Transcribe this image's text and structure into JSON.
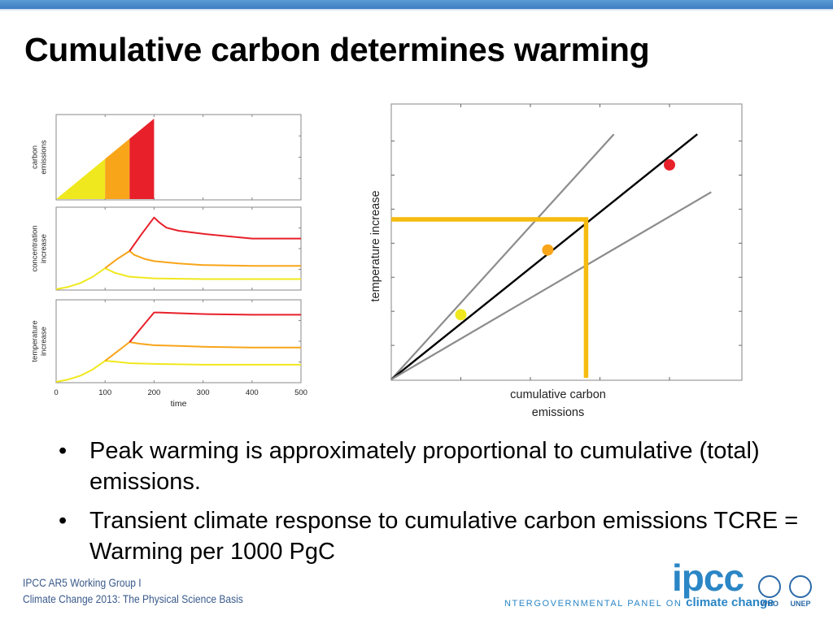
{
  "title": "Cumulative carbon determines warming",
  "bullets": [
    "Peak warming is approximately proportional to cumulative (total) emissions.",
    "Transient climate response to cumulative carbon emissions TCRE = Warming per 1000 PgC"
  ],
  "bullet_marker": "•",
  "footer": {
    "line1": "IPCC AR5 Working Group I",
    "line2": "Climate Change 2013:  The Physical Science Basis"
  },
  "logos": {
    "ipcc": "ipcc",
    "tagline_prefix": "NTERGOVERNMENTAL PANEL ON",
    "tagline_emph": "climate change",
    "who": "WHO",
    "unep": "UNEP",
    "ipcc_color": "#2b86c5"
  },
  "colors": {
    "yellow": "#f0e81e",
    "orange": "#f8a519",
    "red": "#e8202a",
    "gold_line": "#f6bb0f"
  },
  "chart_data": [
    {
      "type": "area",
      "panel": "top",
      "ylabel_lines": [
        "carbon",
        "emissions"
      ],
      "xlim": [
        0,
        500
      ],
      "ylim": [
        0,
        1
      ],
      "phases": [
        {
          "color": "yellow",
          "x0": 0,
          "x1": 100
        },
        {
          "color": "orange",
          "x0": 100,
          "x1": 150
        },
        {
          "color": "red",
          "x0": 150,
          "x1": 200
        }
      ],
      "ramp": {
        "x": [
          0,
          200
        ],
        "y": [
          0,
          1
        ]
      }
    },
    {
      "type": "line",
      "panel": "middle",
      "ylabel_lines": [
        "concentration",
        "increase"
      ],
      "xlim": [
        0,
        500
      ],
      "ylim": [
        0,
        1
      ],
      "series": [
        {
          "color": "yellow",
          "x": [
            0,
            25,
            50,
            75,
            100,
            120,
            150,
            200,
            300,
            400,
            500
          ],
          "y": [
            0,
            0.03,
            0.08,
            0.16,
            0.27,
            0.21,
            0.16,
            0.14,
            0.13,
            0.13,
            0.13
          ]
        },
        {
          "color": "orange",
          "x": [
            100,
            125,
            150,
            160,
            180,
            200,
            250,
            300,
            400,
            500
          ],
          "y": [
            0.27,
            0.39,
            0.49,
            0.44,
            0.39,
            0.36,
            0.33,
            0.31,
            0.3,
            0.3
          ]
        },
        {
          "color": "red",
          "x": [
            150,
            175,
            200,
            210,
            225,
            250,
            300,
            350,
            400,
            500
          ],
          "y": [
            0.49,
            0.71,
            0.92,
            0.86,
            0.79,
            0.75,
            0.71,
            0.68,
            0.65,
            0.65
          ]
        }
      ]
    },
    {
      "type": "line",
      "panel": "bottom",
      "ylabel_lines": [
        "temperature",
        "increase"
      ],
      "xlabel": "time",
      "xticks": [
        0,
        100,
        200,
        300,
        400,
        500
      ],
      "xlim": [
        0,
        500
      ],
      "ylim": [
        0,
        1
      ],
      "series": [
        {
          "color": "yellow",
          "x": [
            0,
            25,
            50,
            75,
            100,
            120,
            150,
            200,
            300,
            400,
            500
          ],
          "y": [
            0,
            0.03,
            0.08,
            0.16,
            0.27,
            0.26,
            0.24,
            0.23,
            0.22,
            0.22,
            0.22
          ]
        },
        {
          "color": "orange",
          "x": [
            100,
            125,
            150,
            170,
            200,
            250,
            300,
            400,
            500
          ],
          "y": [
            0.27,
            0.39,
            0.51,
            0.49,
            0.47,
            0.46,
            0.45,
            0.44,
            0.44
          ]
        },
        {
          "color": "red",
          "x": [
            150,
            175,
            200,
            210,
            250,
            300,
            400,
            500
          ],
          "y": [
            0.51,
            0.7,
            0.89,
            0.89,
            0.88,
            0.87,
            0.86,
            0.86
          ]
        }
      ]
    },
    {
      "type": "scatter",
      "panel": "right",
      "xlabel_lines": [
        "cumulative carbon",
        "emissions"
      ],
      "ylabel": "temperature increase",
      "xlim": [
        0,
        5
      ],
      "ylim": [
        0,
        8
      ],
      "lines": [
        {
          "color": "#8c8c8c",
          "x": [
            0,
            3.2
          ],
          "y": [
            0,
            7.2
          ]
        },
        {
          "color": "#000000",
          "x": [
            0,
            4.4
          ],
          "y": [
            0,
            7.2
          ]
        },
        {
          "color": "#8c8c8c",
          "x": [
            0,
            4.6
          ],
          "y": [
            0,
            5.5
          ]
        }
      ],
      "points": [
        {
          "color": "yellow",
          "x": 1.0,
          "y": 1.9
        },
        {
          "color": "orange",
          "x": 2.25,
          "y": 3.8
        },
        {
          "color": "red",
          "x": 4.0,
          "y": 6.3
        }
      ],
      "guide": {
        "color": "gold_line",
        "x": 2.8,
        "y": 4.7
      }
    }
  ]
}
